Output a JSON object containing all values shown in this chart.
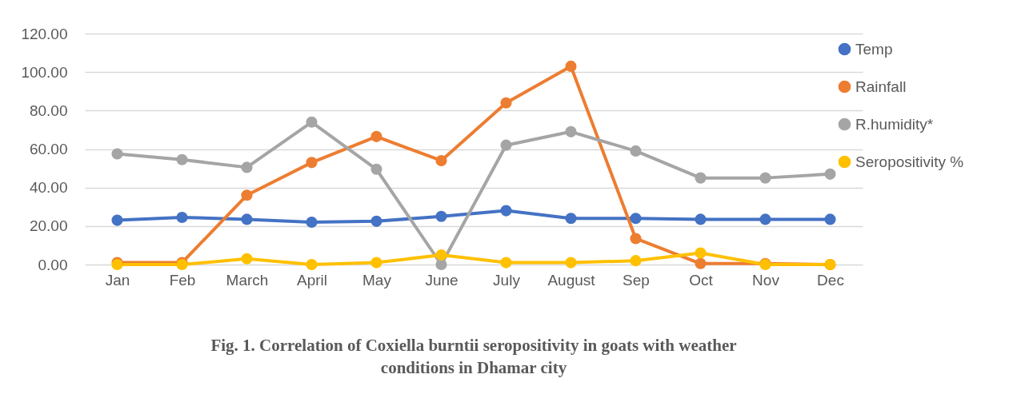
{
  "chart_data": {
    "type": "line",
    "title": "Fig. 1. Correlation of Coxiella burntii seropositivity in goats with weather conditions in Dhamar city",
    "categories": [
      "Jan",
      "Feb",
      "March",
      "April",
      "May",
      "June",
      "July",
      "August",
      "Sep",
      "Oct",
      "Nov",
      "Dec"
    ],
    "series": [
      {
        "name": "Temp",
        "color": "#4472c4",
        "values": [
          23,
          24.5,
          23.5,
          22,
          22.5,
          25,
          28,
          24,
          24,
          23.5,
          23.5,
          23.5
        ]
      },
      {
        "name": "Rainfall",
        "color": "#ed7d31",
        "values": [
          1,
          1,
          36,
          53,
          66.5,
          54,
          84,
          103,
          13.5,
          0.5,
          0.5,
          0
        ]
      },
      {
        "name": "R.humidity*",
        "color": "#a5a5a5",
        "values": [
          57.5,
          54.5,
          50.5,
          74,
          49.5,
          0,
          62,
          69,
          59,
          45,
          45,
          47
        ]
      },
      {
        "name": "Seropositivity %",
        "color": "#ffc000",
        "values": [
          0,
          0,
          3,
          0,
          1,
          5,
          1,
          1,
          2,
          6,
          0,
          0
        ]
      }
    ],
    "ylim": [
      0,
      120
    ],
    "yticks": [
      {
        "value": 0,
        "label": "0.00"
      },
      {
        "value": 20,
        "label": "20.00"
      },
      {
        "value": 40,
        "label": "40.00"
      },
      {
        "value": 60,
        "label": "60.00"
      },
      {
        "value": 80,
        "label": "80.00"
      },
      {
        "value": 100,
        "label": "100.00"
      },
      {
        "value": 120,
        "label": "120.00"
      }
    ],
    "grid": "y",
    "legend": "right",
    "marker": "circle",
    "line_style": "solid"
  }
}
